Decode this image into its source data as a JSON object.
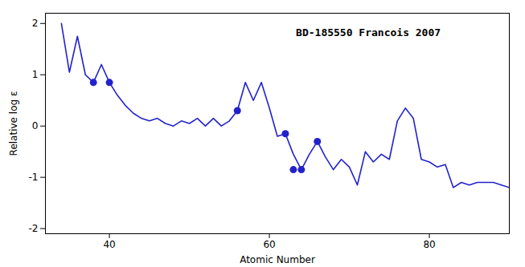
{
  "chart_data": {
    "type": "line",
    "xlabel": "Atomic Number",
    "ylabel": "Relative log ε",
    "annotation": "BD-185550 Francois 2007",
    "xlim": [
      32,
      90
    ],
    "ylim": [
      -2.1,
      2.2
    ],
    "xticks": [
      40,
      60,
      80
    ],
    "yticks": [
      -2,
      -1,
      0,
      1,
      2
    ],
    "series": [
      {
        "type": "line",
        "color": "#2222cc",
        "x": [
          34,
          35,
          36,
          37,
          38,
          39,
          40,
          41,
          42,
          43,
          44,
          45,
          46,
          47,
          48,
          49,
          50,
          51,
          52,
          53,
          54,
          55,
          56,
          57,
          58,
          59,
          60,
          61,
          62,
          63,
          64,
          65,
          66,
          67,
          68,
          69,
          70,
          71,
          72,
          73,
          74,
          75,
          76,
          77,
          78,
          79,
          80,
          81,
          82,
          83,
          84,
          85,
          86,
          87,
          88,
          89,
          90
        ],
        "values": [
          2.0,
          1.05,
          1.75,
          1.0,
          0.85,
          1.2,
          0.85,
          0.6,
          0.4,
          0.25,
          0.15,
          0.1,
          0.15,
          0.05,
          0.0,
          0.1,
          0.05,
          0.15,
          0.0,
          0.15,
          -0.0,
          0.1,
          0.3,
          0.85,
          0.5,
          0.85,
          0.35,
          -0.2,
          -0.15,
          -0.55,
          -0.85,
          -0.55,
          -0.3,
          -0.6,
          -0.85,
          -0.65,
          -0.8,
          -1.15,
          -0.5,
          -0.7,
          -0.55,
          -0.65,
          0.1,
          0.35,
          0.15,
          -0.65,
          -0.7,
          -0.8,
          -0.75,
          -1.2,
          -1.1,
          -1.15,
          -1.1,
          -1.1,
          -1.1,
          -1.15,
          -1.2
        ]
      },
      {
        "type": "scatter",
        "color": "#2222cc",
        "marker": "circle",
        "x": [
          38,
          40,
          56,
          62,
          63,
          64,
          66
        ],
        "values": [
          0.85,
          0.85,
          0.3,
          -0.15,
          -0.85,
          -0.85,
          -0.3
        ]
      }
    ]
  }
}
